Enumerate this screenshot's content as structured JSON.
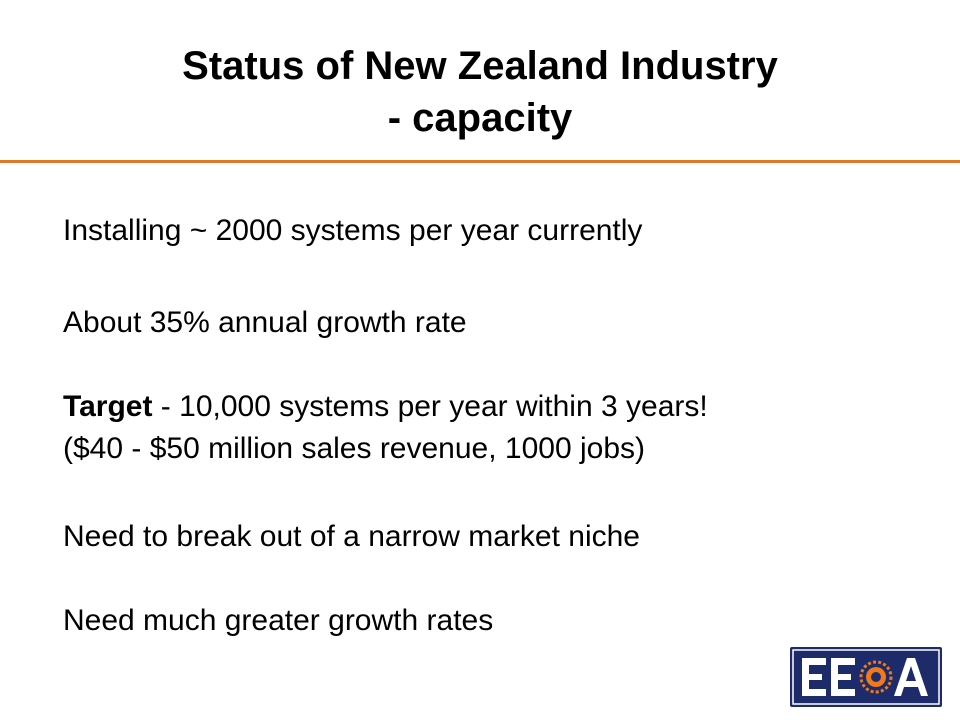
{
  "slide": {
    "title_line1": "Status of New Zealand Industry",
    "title_line2": "- capacity",
    "accent_color": "#e0782c",
    "bullets": {
      "b1": "Installing ~ 2000 systems per year currently",
      "b2": "About 35% annual growth rate",
      "b3_bold": "Target",
      "b3_rest": " - 10,000 systems per year within 3 years!",
      "b4": "($40 - $50 million sales revenue, 1000 jobs)",
      "b5": "Need to break out of a narrow market niche",
      "b6": "Need much greater growth rates"
    },
    "logo": {
      "text": "EECA",
      "background_color": "#1d2b6b",
      "sun_color": "#f07a1a"
    }
  }
}
